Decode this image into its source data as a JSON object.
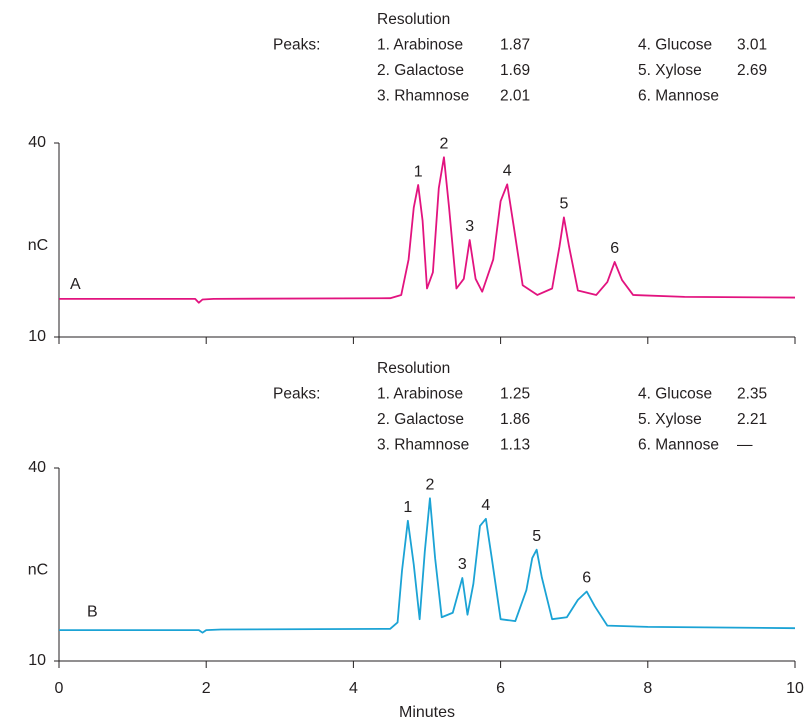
{
  "chart_data": [
    {
      "type": "line",
      "peaks_table": {
        "heading": "Resolution",
        "label": "Peaks:",
        "rows": [
          {
            "name": "1. Arabinose",
            "resolution": 1.87
          },
          {
            "name": "2. Galactose",
            "resolution": 1.69
          },
          {
            "name": "3. Rhamnose",
            "resolution": 2.01
          },
          {
            "name": "4. Glucose",
            "resolution": 3.01
          },
          {
            "name": "5. Xylose",
            "resolution": 2.69
          },
          {
            "name": "6. Mannose"
          }
        ]
      },
      "y_label": "nC",
      "xlim": [
        0,
        10
      ],
      "xticks": [
        0,
        2,
        4,
        6,
        8,
        10
      ],
      "xtick_labels": false,
      "ylim": [
        10,
        40
      ],
      "yticks": [
        10,
        40
      ],
      "peak_labels": [
        "1",
        "2",
        "3",
        "4",
        "5",
        "6"
      ],
      "x": [
        0,
        1.85,
        1.9,
        1.95,
        2.1,
        4.5,
        4.65,
        4.75,
        4.82,
        4.88,
        4.94,
        5.0,
        5.08,
        5.16,
        5.23,
        5.3,
        5.4,
        5.5,
        5.58,
        5.66,
        5.75,
        5.9,
        6.0,
        6.09,
        6.18,
        6.3,
        6.5,
        6.7,
        6.8,
        6.86,
        6.93,
        7.05,
        7.3,
        7.45,
        7.55,
        7.65,
        7.8,
        8.5,
        10
      ],
      "series": [
        {
          "name": "A",
          "color": "#e2137f",
          "values": [
            15.9,
            15.9,
            15.3,
            15.8,
            15.9,
            16.0,
            16.5,
            22,
            30,
            33.5,
            28,
            17.5,
            20,
            33,
            37.8,
            30,
            17.5,
            19,
            25.0,
            19,
            17,
            22,
            31,
            33.6,
            27,
            18,
            16.5,
            17.5,
            24,
            28.5,
            24,
            17.2,
            16.5,
            18.5,
            21.6,
            18.8,
            16.5,
            16.2,
            16.1
          ]
        }
      ]
    },
    {
      "type": "line",
      "peaks_table": {
        "heading": "Resolution",
        "label": "Peaks:",
        "rows": [
          {
            "name": "1. Arabinose",
            "resolution": 1.25
          },
          {
            "name": "2. Galactose",
            "resolution": 1.86
          },
          {
            "name": "3. Rhamnose",
            "resolution": 1.13
          },
          {
            "name": "4. Glucose",
            "resolution": 2.35
          },
          {
            "name": "5. Xylose",
            "resolution": 2.21
          },
          {
            "name": "6. Mannose",
            "resolution": "—"
          }
        ]
      },
      "y_label": "nC",
      "x_label": "Minutes",
      "xlim": [
        0,
        10
      ],
      "xticks": [
        0,
        2,
        4,
        6,
        8,
        10
      ],
      "xtick_labels": true,
      "ylim": [
        10,
        40
      ],
      "yticks": [
        10,
        40
      ],
      "peak_labels": [
        "1",
        "2",
        "3",
        "4",
        "5",
        "6"
      ],
      "x": [
        0,
        1.9,
        1.95,
        2.0,
        2.2,
        4.5,
        4.6,
        4.66,
        4.74,
        4.82,
        4.9,
        4.97,
        5.04,
        5.11,
        5.2,
        5.35,
        5.48,
        5.55,
        5.63,
        5.72,
        5.8,
        5.88,
        6.0,
        6.2,
        6.35,
        6.43,
        6.49,
        6.56,
        6.7,
        6.9,
        7.05,
        7.17,
        7.28,
        7.45,
        8,
        10
      ],
      "series": [
        {
          "name": "B",
          "color": "#1ba3d5",
          "values": [
            14.8,
            14.8,
            14.4,
            14.8,
            14.9,
            15.0,
            16,
            24,
            31.8,
            25,
            16.5,
            27,
            35.3,
            26,
            16.8,
            17.5,
            22.9,
            17.2,
            22,
            31,
            32.1,
            26,
            16.5,
            16.2,
            21,
            26,
            27.3,
            23,
            16.5,
            16.8,
            19.5,
            20.8,
            18.5,
            15.5,
            15.3,
            15.1
          ]
        }
      ]
    }
  ]
}
